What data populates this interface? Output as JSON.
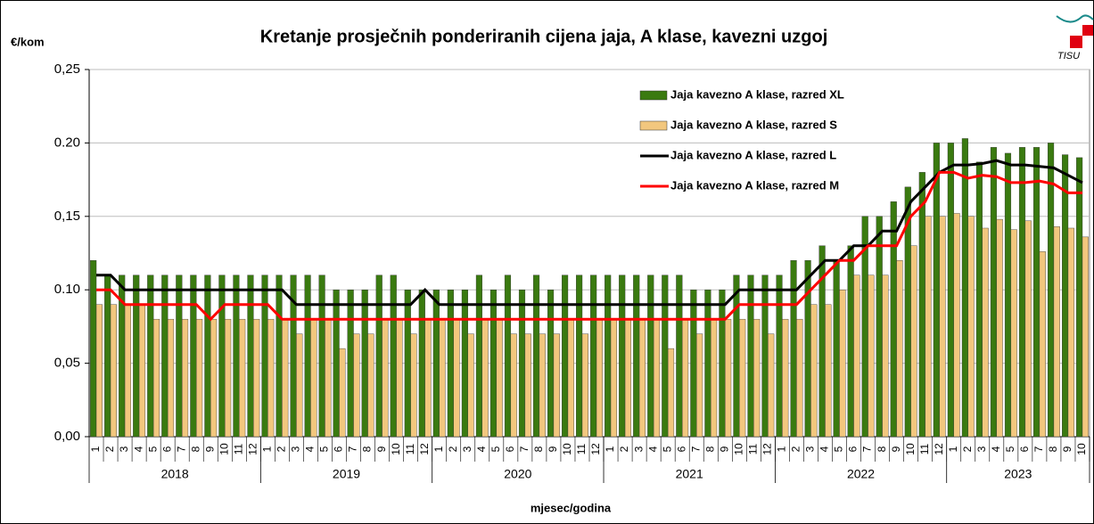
{
  "chart_data": {
    "type": "bar-line",
    "title": "Kretanje prosječnih ponderiranih cijena jaja, A klase, kavezni uzgoj",
    "y_label": "€/kom",
    "x_label": "mjesec/godina",
    "logo": "TISU",
    "categories": [
      "1",
      "2",
      "3",
      "4",
      "5",
      "6",
      "7",
      "8",
      "9",
      "10",
      "11",
      "12",
      "1",
      "2",
      "3",
      "4",
      "5",
      "6",
      "7",
      "8",
      "9",
      "10",
      "11",
      "12",
      "1",
      "2",
      "3",
      "4",
      "5",
      "6",
      "7",
      "8",
      "9",
      "10",
      "11",
      "12",
      "1",
      "2",
      "3",
      "4",
      "5",
      "6",
      "7",
      "8",
      "9",
      "10",
      "11",
      "12",
      "1",
      "2",
      "3",
      "4",
      "5",
      "6",
      "7",
      "8",
      "9",
      "10",
      "11",
      "12",
      "1",
      "2",
      "3",
      "4",
      "5",
      "6",
      "7",
      "8",
      "9",
      "10"
    ],
    "years": [
      "2018",
      "2019",
      "2020",
      "2021",
      "2022",
      "2023"
    ],
    "ylim": [
      0,
      0.25
    ],
    "yticks": [
      {
        "value": 0,
        "label": "0,00"
      },
      {
        "value": 0.05,
        "label": "0,05"
      },
      {
        "value": 0.1,
        "label": "0.10"
      },
      {
        "value": 0.15,
        "label": "0,15"
      },
      {
        "value": 0.2,
        "label": "0.20"
      },
      {
        "value": 0.25,
        "label": "0,25"
      }
    ],
    "grid": true,
    "legend": "upper right",
    "series": [
      {
        "name": "Jaja kavezno A klase, razred XL",
        "kind": "bar",
        "color": "#3a7a10",
        "values": [
          0.12,
          0.11,
          0.11,
          0.11,
          0.11,
          0.11,
          0.11,
          0.11,
          0.11,
          0.11,
          0.11,
          0.11,
          0.11,
          0.11,
          0.11,
          0.11,
          0.11,
          0.1,
          0.1,
          0.1,
          0.11,
          0.11,
          0.1,
          0.1,
          0.1,
          0.1,
          0.1,
          0.11,
          0.1,
          0.11,
          0.1,
          0.11,
          0.1,
          0.11,
          0.11,
          0.11,
          0.11,
          0.11,
          0.11,
          0.11,
          0.11,
          0.11,
          0.1,
          0.1,
          0.1,
          0.11,
          0.11,
          0.11,
          0.11,
          0.12,
          0.12,
          0.13,
          0.12,
          0.13,
          0.15,
          0.15,
          0.16,
          0.17,
          0.18,
          0.2,
          0.2,
          0.203,
          0.187,
          0.197,
          0.193,
          0.197,
          0.197,
          0.2,
          0.192,
          0.19
        ]
      },
      {
        "name": "Jaja kavezno A klase, razred S",
        "kind": "bar",
        "color": "#f2c77e",
        "values": [
          0.09,
          0.09,
          0.09,
          0.09,
          0.08,
          0.08,
          0.08,
          0.08,
          0.08,
          0.08,
          0.08,
          0.08,
          0.08,
          0.08,
          0.07,
          0.08,
          0.08,
          0.06,
          0.07,
          0.07,
          0.08,
          0.08,
          0.07,
          0.08,
          0.08,
          0.08,
          0.07,
          0.08,
          0.08,
          0.07,
          0.07,
          0.07,
          0.07,
          0.08,
          0.07,
          0.08,
          0.08,
          0.08,
          0.08,
          0.08,
          0.06,
          0.08,
          0.07,
          0.08,
          0.08,
          0.08,
          0.08,
          0.07,
          0.08,
          0.08,
          0.09,
          0.09,
          0.1,
          0.11,
          0.11,
          0.11,
          0.12,
          0.13,
          0.15,
          0.15,
          0.152,
          0.15,
          0.142,
          0.148,
          0.141,
          0.147,
          0.126,
          0.143,
          0.142,
          0.136
        ]
      },
      {
        "name": "Jaja kavezno A klase, razred L",
        "kind": "line",
        "color": "#000000",
        "values": [
          0.11,
          0.11,
          0.1,
          0.1,
          0.1,
          0.1,
          0.1,
          0.1,
          0.1,
          0.1,
          0.1,
          0.1,
          0.1,
          0.1,
          0.09,
          0.09,
          0.09,
          0.09,
          0.09,
          0.09,
          0.09,
          0.09,
          0.09,
          0.1,
          0.09,
          0.09,
          0.09,
          0.09,
          0.09,
          0.09,
          0.09,
          0.09,
          0.09,
          0.09,
          0.09,
          0.09,
          0.09,
          0.09,
          0.09,
          0.09,
          0.09,
          0.09,
          0.09,
          0.09,
          0.09,
          0.1,
          0.1,
          0.1,
          0.1,
          0.1,
          0.11,
          0.12,
          0.12,
          0.13,
          0.13,
          0.14,
          0.14,
          0.16,
          0.17,
          0.18,
          0.185,
          0.185,
          0.186,
          0.188,
          0.185,
          0.185,
          0.184,
          0.183,
          0.178,
          0.173
        ]
      },
      {
        "name": "Jaja kavezno A klase, razred M",
        "kind": "line",
        "color": "#ff0000",
        "values": [
          0.1,
          0.1,
          0.09,
          0.09,
          0.09,
          0.09,
          0.09,
          0.09,
          0.08,
          0.09,
          0.09,
          0.09,
          0.09,
          0.08,
          0.08,
          0.08,
          0.08,
          0.08,
          0.08,
          0.08,
          0.08,
          0.08,
          0.08,
          0.08,
          0.08,
          0.08,
          0.08,
          0.08,
          0.08,
          0.08,
          0.08,
          0.08,
          0.08,
          0.08,
          0.08,
          0.08,
          0.08,
          0.08,
          0.08,
          0.08,
          0.08,
          0.08,
          0.08,
          0.08,
          0.08,
          0.09,
          0.09,
          0.09,
          0.09,
          0.09,
          0.1,
          0.11,
          0.12,
          0.12,
          0.13,
          0.13,
          0.13,
          0.15,
          0.16,
          0.18,
          0.18,
          0.176,
          0.178,
          0.177,
          0.173,
          0.173,
          0.174,
          0.172,
          0.166,
          0.166
        ]
      }
    ]
  }
}
